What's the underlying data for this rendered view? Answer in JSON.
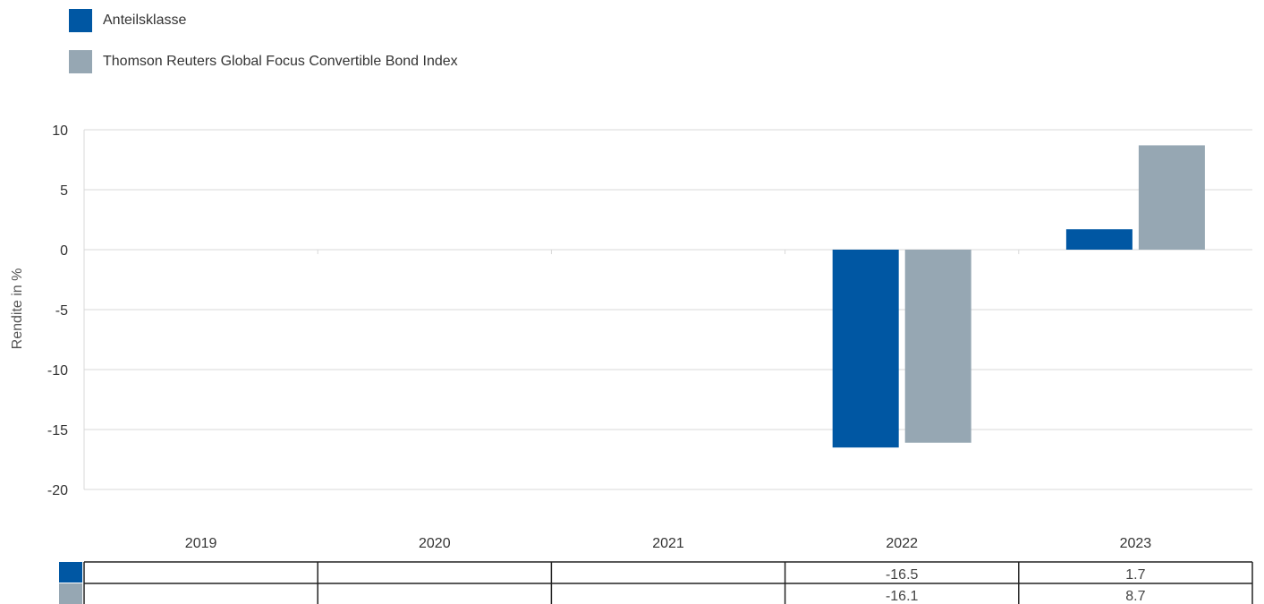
{
  "legend": {
    "items": [
      {
        "label": "Anteilsklasse",
        "color": "#0057a3"
      },
      {
        "label": "Thomson Reuters Global Focus Convertible Bond Index",
        "color": "#96a7b3"
      }
    ]
  },
  "chart_data": {
    "type": "bar",
    "categories": [
      "2019",
      "2020",
      "2021",
      "2022",
      "2023"
    ],
    "series": [
      {
        "name": "Anteilsklasse",
        "color": "#0057a3",
        "values": [
          null,
          null,
          null,
          -16.5,
          1.7
        ]
      },
      {
        "name": "Thomson Reuters Global Focus Convertible Bond Index",
        "color": "#96a7b3",
        "values": [
          null,
          null,
          null,
          -16.1,
          8.7
        ]
      }
    ],
    "ylabel": "Rendite in %",
    "ylim": [
      -20,
      10
    ],
    "yticks": [
      10,
      5,
      0,
      -5,
      -10,
      -15,
      -20
    ],
    "grid": true,
    "legend_position": "top-left",
    "data_table": true
  }
}
